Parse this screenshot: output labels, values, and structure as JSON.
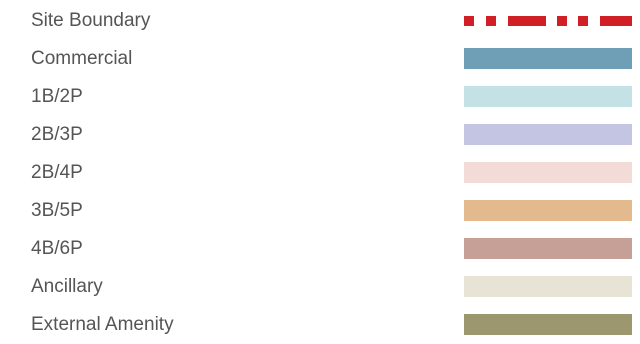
{
  "legend": {
    "items": [
      {
        "label": "Site Boundary",
        "style": "dash-dot",
        "color": "#d11f26"
      },
      {
        "label": "Commercial",
        "style": "fill",
        "color": "#6f9fb6"
      },
      {
        "label": "1B/2P",
        "style": "fill",
        "color": "#c4e2e6"
      },
      {
        "label": "2B/3P",
        "style": "fill",
        "color": "#c4c5e3"
      },
      {
        "label": "2B/4P",
        "style": "fill",
        "color": "#f3dcd8"
      },
      {
        "label": "3B/5P",
        "style": "fill",
        "color": "#e3ba8d"
      },
      {
        "label": "4B/6P",
        "style": "fill",
        "color": "#c69f97"
      },
      {
        "label": "Ancillary",
        "style": "fill",
        "color": "#e7e4d5"
      },
      {
        "label": "External Amenity",
        "style": "fill",
        "color": "#9d976f"
      }
    ]
  }
}
